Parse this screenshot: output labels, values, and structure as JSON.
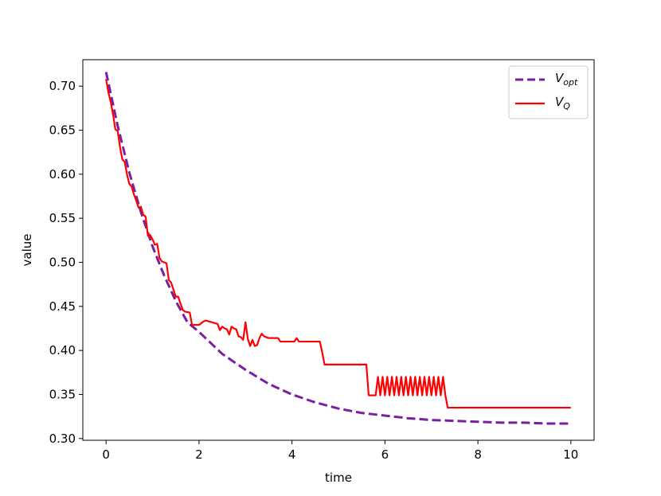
{
  "chart_data": {
    "type": "line",
    "title": "",
    "xlabel": "time",
    "ylabel": "value",
    "xlim": [
      -0.5,
      10.5
    ],
    "ylim": [
      0.298,
      0.73
    ],
    "xticks": [
      "0",
      "2",
      "4",
      "6",
      "8",
      "10"
    ],
    "xtick_values": [
      0,
      2,
      4,
      6,
      8,
      10
    ],
    "yticks": [
      "0.30",
      "0.35",
      "0.40",
      "0.45",
      "0.50",
      "0.55",
      "0.60",
      "0.65",
      "0.70"
    ],
    "ytick_values": [
      0.3,
      0.35,
      0.4,
      0.45,
      0.5,
      0.55,
      0.6,
      0.65,
      0.7
    ],
    "grid": false,
    "legend_position": "top-right",
    "series": [
      {
        "name": "V_opt",
        "legend_main": "V",
        "legend_sub": "opt",
        "color": "#7b1fa2",
        "style": "dashed",
        "x": [
          0,
          0.25,
          0.5,
          0.75,
          1.0,
          1.25,
          1.5,
          1.75,
          2.0,
          2.5,
          3.0,
          3.5,
          4.0,
          4.5,
          5.0,
          5.5,
          6.0,
          6.5,
          7.0,
          7.5,
          8.0,
          8.5,
          9.0,
          9.5,
          10.0
        ],
        "values": [
          0.716,
          0.655,
          0.602,
          0.557,
          0.518,
          0.485,
          0.456,
          0.432,
          0.421,
          0.396,
          0.378,
          0.362,
          0.35,
          0.341,
          0.334,
          0.329,
          0.326,
          0.323,
          0.321,
          0.32,
          0.319,
          0.318,
          0.318,
          0.317,
          0.317
        ]
      },
      {
        "name": "V_Q",
        "legend_main": "V",
        "legend_sub": "Q",
        "color": "#ff0000",
        "style": "solid",
        "x": [
          0,
          0.05,
          0.1,
          0.15,
          0.2,
          0.25,
          0.3,
          0.35,
          0.4,
          0.45,
          0.5,
          0.55,
          0.6,
          0.65,
          0.7,
          0.75,
          0.8,
          0.85,
          0.9,
          0.95,
          1.0,
          1.05,
          1.1,
          1.15,
          1.2,
          1.3,
          1.35,
          1.4,
          1.5,
          1.55,
          1.65,
          1.7,
          1.8,
          1.85,
          1.95,
          2.0,
          2.1,
          2.15,
          2.4,
          2.45,
          2.5,
          2.55,
          2.6,
          2.65,
          2.7,
          2.75,
          2.8,
          2.85,
          2.9,
          2.95,
          3.0,
          3.05,
          3.1,
          3.15,
          3.2,
          3.25,
          3.3,
          3.35,
          3.4,
          3.45,
          3.5,
          3.55,
          3.6,
          3.7,
          3.75,
          4.0,
          4.05,
          4.1,
          4.15,
          4.2,
          4.25,
          4.3,
          4.6,
          4.65,
          4.7,
          5.6,
          5.65,
          5.8,
          5.85,
          5.9,
          5.95,
          6.0,
          6.05,
          6.1,
          6.15,
          6.2,
          6.25,
          6.3,
          6.35,
          6.4,
          6.45,
          6.5,
          6.55,
          6.6,
          6.65,
          6.7,
          6.75,
          6.8,
          6.85,
          6.9,
          6.95,
          7.0,
          7.05,
          7.1,
          7.15,
          7.2,
          7.25,
          7.3,
          7.35,
          10.0
        ],
        "values": [
          0.708,
          0.693,
          0.682,
          0.668,
          0.651,
          0.649,
          0.631,
          0.617,
          0.614,
          0.6,
          0.589,
          0.586,
          0.577,
          0.57,
          0.562,
          0.563,
          0.554,
          0.552,
          0.53,
          0.531,
          0.526,
          0.52,
          0.521,
          0.505,
          0.501,
          0.499,
          0.48,
          0.477,
          0.461,
          0.461,
          0.446,
          0.444,
          0.443,
          0.429,
          0.429,
          0.429,
          0.433,
          0.434,
          0.43,
          0.423,
          0.427,
          0.425,
          0.424,
          0.418,
          0.427,
          0.425,
          0.424,
          0.416,
          0.415,
          0.412,
          0.432,
          0.413,
          0.405,
          0.412,
          0.405,
          0.406,
          0.414,
          0.419,
          0.416,
          0.415,
          0.414,
          0.414,
          0.414,
          0.414,
          0.41,
          0.41,
          0.41,
          0.414,
          0.41,
          0.41,
          0.41,
          0.41,
          0.41,
          0.398,
          0.384,
          0.384,
          0.349,
          0.349,
          0.37,
          0.349,
          0.37,
          0.349,
          0.37,
          0.349,
          0.37,
          0.349,
          0.37,
          0.349,
          0.37,
          0.349,
          0.37,
          0.349,
          0.37,
          0.349,
          0.37,
          0.349,
          0.37,
          0.349,
          0.37,
          0.349,
          0.37,
          0.349,
          0.37,
          0.349,
          0.37,
          0.349,
          0.37,
          0.349,
          0.335,
          0.335
        ]
      }
    ]
  }
}
